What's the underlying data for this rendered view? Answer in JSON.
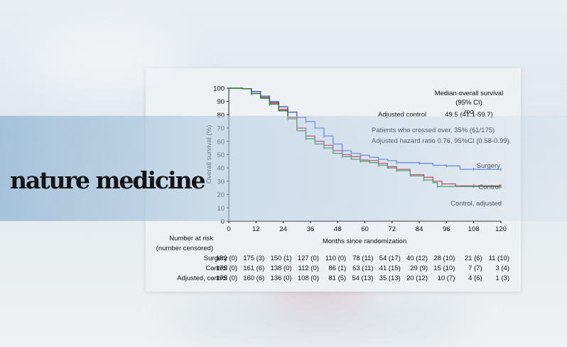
{
  "brand": {
    "name": "nature medicine"
  },
  "colors": {
    "surgery": "#3b62c4",
    "control": "#b3152a",
    "control_adjusted": "#1f7a2e",
    "brand_band": "#8fb3d2"
  },
  "chart_data": {
    "type": "line",
    "xlabel": "Months since randomization",
    "ylabel": "Overall survival (%)",
    "xlim": [
      0,
      120
    ],
    "ylim": [
      0,
      100
    ],
    "xticks": [
      0,
      12,
      24,
      36,
      48,
      60,
      72,
      84,
      96,
      108,
      120
    ],
    "yticks": [
      0,
      10,
      20,
      30,
      40,
      50,
      60,
      70,
      80,
      90,
      100
    ],
    "grid": false,
    "annotations": {
      "median_title": "Median overall survival",
      "median_ci": "(95% CI)",
      "median_unit": "mo",
      "adjusted_label": "Adjusted control",
      "adjusted_value": "49.5 (41.1-59.7)",
      "crossover": "Patients who crossed over, 35% (61/175)",
      "hazard": "Adjusted hazard ratio 0.76, 95%CI (0.58-0.99)"
    },
    "series": [
      {
        "name": "Surgery",
        "color": "#3b62c4",
        "x": [
          0,
          6,
          10,
          14,
          18,
          22,
          26,
          30,
          34,
          38,
          42,
          46,
          50,
          54,
          58,
          62,
          66,
          70,
          74,
          78,
          84,
          90,
          96,
          102,
          108,
          114,
          120
        ],
        "y": [
          100,
          99.5,
          97.5,
          94,
          90,
          86,
          82,
          78,
          75,
          70,
          64,
          58,
          53,
          51,
          49.5,
          48,
          46.5,
          45.5,
          44,
          44,
          43.5,
          42,
          41.5,
          39,
          39,
          39,
          39
        ]
      },
      {
        "name": "Control",
        "color": "#b3152a",
        "x": [
          0,
          6,
          10,
          14,
          18,
          22,
          26,
          30,
          34,
          38,
          42,
          46,
          50,
          54,
          58,
          62,
          66,
          70,
          74,
          80,
          86,
          90,
          94,
          100,
          108,
          114,
          120
        ],
        "y": [
          100,
          99.5,
          96,
          93,
          89,
          84,
          78,
          70,
          64,
          60,
          57,
          53,
          50,
          48.5,
          46,
          45.5,
          43.5,
          41,
          39,
          35,
          33,
          30,
          28,
          26.5,
          26.5,
          26.5,
          26.5
        ]
      },
      {
        "name": "Control, adjusted",
        "color": "#1f7a2e",
        "x": [
          0,
          6,
          10,
          14,
          18,
          22,
          26,
          30,
          34,
          38,
          42,
          46,
          50,
          54,
          58,
          62,
          66,
          70,
          74,
          80,
          86,
          90,
          92,
          100,
          108,
          114,
          120
        ],
        "y": [
          100,
          99.5,
          96,
          92.5,
          88,
          83,
          77,
          68,
          62,
          58,
          55,
          51,
          48.5,
          46.5,
          45,
          44,
          42,
          40,
          38,
          34,
          31,
          29,
          26,
          26,
          26,
          26,
          26
        ]
      }
    ],
    "series_labels": [
      "Surgery",
      "Control",
      "Control, adjusted"
    ],
    "risk_table": {
      "header": [
        "Number at risk",
        "(number censored)"
      ],
      "rows": [
        {
          "label": "Surgery",
          "values": [
            "182 (0)",
            "175 (3)",
            "150 (1)",
            "127 (0)",
            "110 (0)",
            "78 (11)",
            "54 (17)",
            "40 (12)",
            "28 (10)",
            "21 (6)",
            "11 (10)"
          ]
        },
        {
          "label": "Control",
          "values": [
            "175 (0)",
            "161 (6)",
            "138 (0)",
            "112 (0)",
            "86 (1)",
            "63 (11)",
            "41 (15)",
            "29 (9)",
            "15 (10)",
            "7 (7)",
            "3 (4)"
          ]
        },
        {
          "label": "Adjusted, control",
          "values": [
            "175 (0)",
            "160 (6)",
            "136 (0)",
            "108 (0)",
            "81 (5)",
            "54 (13)",
            "35 (13)",
            "20 (12)",
            "10 (7)",
            "4 (6)",
            "1 (3)"
          ]
        }
      ]
    }
  }
}
